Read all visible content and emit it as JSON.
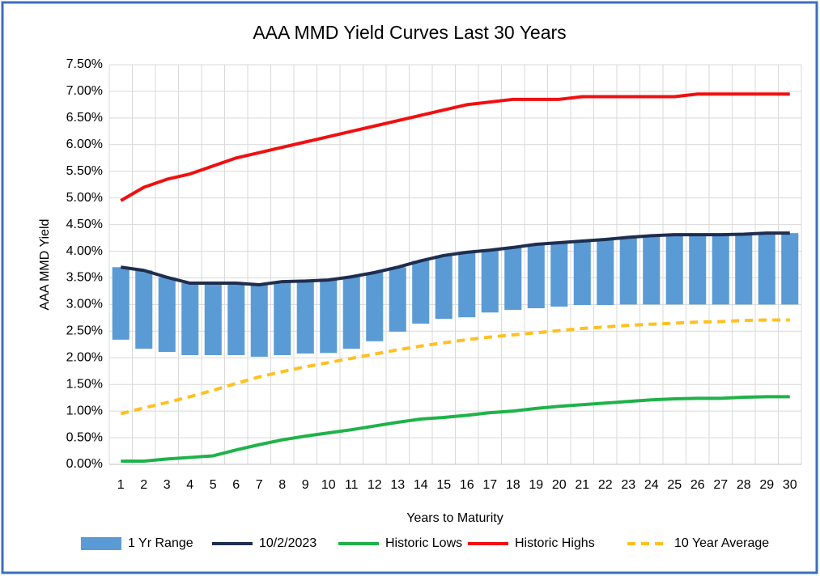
{
  "chart_data": {
    "type": "line",
    "title": "AAA MMD Yield Curves Last 30 Years",
    "y_label": "AAA MMD Yield",
    "x_label": "Years to Maturity",
    "categories": [
      1,
      2,
      3,
      4,
      5,
      6,
      7,
      8,
      9,
      10,
      11,
      12,
      13,
      14,
      15,
      16,
      17,
      18,
      19,
      20,
      21,
      22,
      23,
      24,
      25,
      26,
      27,
      28,
      29,
      30
    ],
    "ylim": [
      0,
      7.5
    ],
    "yticks": [
      {
        "value": 0,
        "label": "0.00%"
      },
      {
        "value": 0.5,
        "label": "0.50%"
      },
      {
        "value": 1,
        "label": "1.00%"
      },
      {
        "value": 1.5,
        "label": "1.50%"
      },
      {
        "value": 2,
        "label": "2.00%"
      },
      {
        "value": 2.5,
        "label": "2.50%"
      },
      {
        "value": 3,
        "label": "3.00%"
      },
      {
        "value": 3.5,
        "label": "3.50%"
      },
      {
        "value": 4,
        "label": "4.00%"
      },
      {
        "value": 4.5,
        "label": "4.50%"
      },
      {
        "value": 5,
        "label": "5.00%"
      },
      {
        "value": 5.5,
        "label": "5.50%"
      },
      {
        "value": 6,
        "label": "6.00%"
      },
      {
        "value": 6.5,
        "label": "6.50%"
      },
      {
        "value": 7,
        "label": "7.00%"
      },
      {
        "value": 7.5,
        "label": "7.50%"
      }
    ],
    "grid": true,
    "legend": "bottom",
    "series": [
      {
        "name": "1 Yr Range",
        "type": "range",
        "color": "#5b9bd5",
        "low": [
          2.34,
          2.17,
          2.11,
          2.05,
          2.05,
          2.05,
          2.02,
          2.05,
          2.08,
          2.09,
          2.17,
          2.31,
          2.49,
          2.64,
          2.73,
          2.76,
          2.85,
          2.9,
          2.93,
          2.96,
          2.99,
          2.99,
          3,
          3,
          3,
          3,
          3,
          3,
          3,
          3
        ],
        "high": [
          3.7,
          3.64,
          3.51,
          3.4,
          3.4,
          3.4,
          3.37,
          3.43,
          3.44,
          3.46,
          3.52,
          3.6,
          3.7,
          3.82,
          3.92,
          3.98,
          4.02,
          4.07,
          4.13,
          4.16,
          4.19,
          4.22,
          4.26,
          4.29,
          4.31,
          4.31,
          4.31,
          4.32,
          4.34,
          4.34
        ]
      },
      {
        "name": "10/2/2023",
        "color": "#1f2d4f",
        "values": [
          3.7,
          3.64,
          3.51,
          3.4,
          3.4,
          3.4,
          3.37,
          3.43,
          3.44,
          3.46,
          3.52,
          3.6,
          3.7,
          3.82,
          3.92,
          3.98,
          4.02,
          4.07,
          4.13,
          4.16,
          4.19,
          4.22,
          4.26,
          4.29,
          4.31,
          4.31,
          4.31,
          4.32,
          4.34,
          4.34
        ]
      },
      {
        "name": "Historic Lows",
        "color": "#1fb24a",
        "values": [
          0.06,
          0.06,
          0.1,
          0.13,
          0.16,
          0.27,
          0.37,
          0.46,
          0.53,
          0.59,
          0.65,
          0.72,
          0.79,
          0.85,
          0.88,
          0.92,
          0.97,
          1,
          1.05,
          1.09,
          1.12,
          1.15,
          1.18,
          1.21,
          1.23,
          1.24,
          1.24,
          1.26,
          1.27,
          1.27
        ]
      },
      {
        "name": "Historic Highs",
        "color": "#f01010",
        "values": [
          4.95,
          5.2,
          5.35,
          5.45,
          5.6,
          5.75,
          5.85,
          5.95,
          6.05,
          6.15,
          6.25,
          6.35,
          6.45,
          6.55,
          6.65,
          6.75,
          6.8,
          6.85,
          6.85,
          6.85,
          6.9,
          6.9,
          6.9,
          6.9,
          6.9,
          6.95,
          6.95,
          6.95,
          6.95,
          6.95
        ]
      },
      {
        "name": "10 Year Average",
        "color": "#ffc020",
        "dashed": true,
        "values": [
          0.95,
          1.06,
          1.16,
          1.27,
          1.39,
          1.52,
          1.64,
          1.74,
          1.83,
          1.91,
          1.99,
          2.07,
          2.15,
          2.22,
          2.28,
          2.34,
          2.39,
          2.43,
          2.47,
          2.51,
          2.55,
          2.58,
          2.61,
          2.63,
          2.65,
          2.67,
          2.68,
          2.7,
          2.71,
          2.71
        ]
      }
    ]
  }
}
